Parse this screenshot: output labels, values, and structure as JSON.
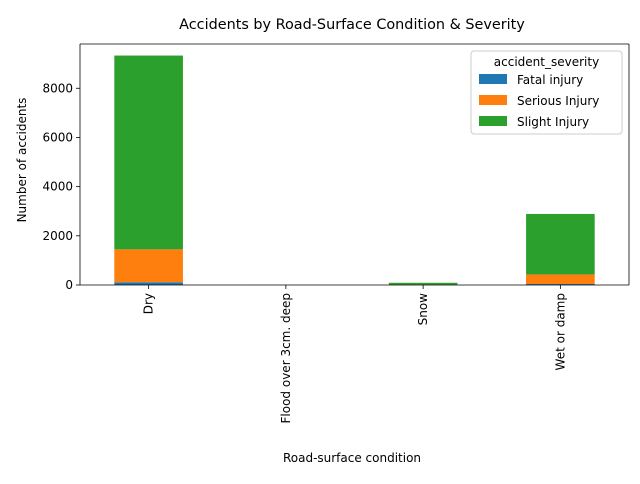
{
  "chart_data": {
    "type": "bar",
    "stacked": true,
    "title": "Accidents by Road-Surface Condition & Severity",
    "xlabel": "Road-surface condition",
    "ylabel": "Number of accidents",
    "categories": [
      "Dry",
      "Flood over 3cm. deep",
      "Snow",
      "Wet or damp"
    ],
    "series": [
      {
        "name": "Fatal injury",
        "color": "#1f77b4",
        "values": [
          110,
          0,
          2,
          40
        ]
      },
      {
        "name": "Serious Injury",
        "color": "#ff7f0e",
        "values": [
          1340,
          1,
          8,
          390
        ]
      },
      {
        "name": "Slight Injury",
        "color": "#2ca02c",
        "values": [
          7880,
          2,
          80,
          2460
        ]
      }
    ],
    "ylim": [
      0,
      9800
    ],
    "yticks": [
      0,
      2000,
      4000,
      6000,
      8000
    ],
    "legend": {
      "title": "accident_severity",
      "placement": "top-right"
    },
    "grid": false
  }
}
